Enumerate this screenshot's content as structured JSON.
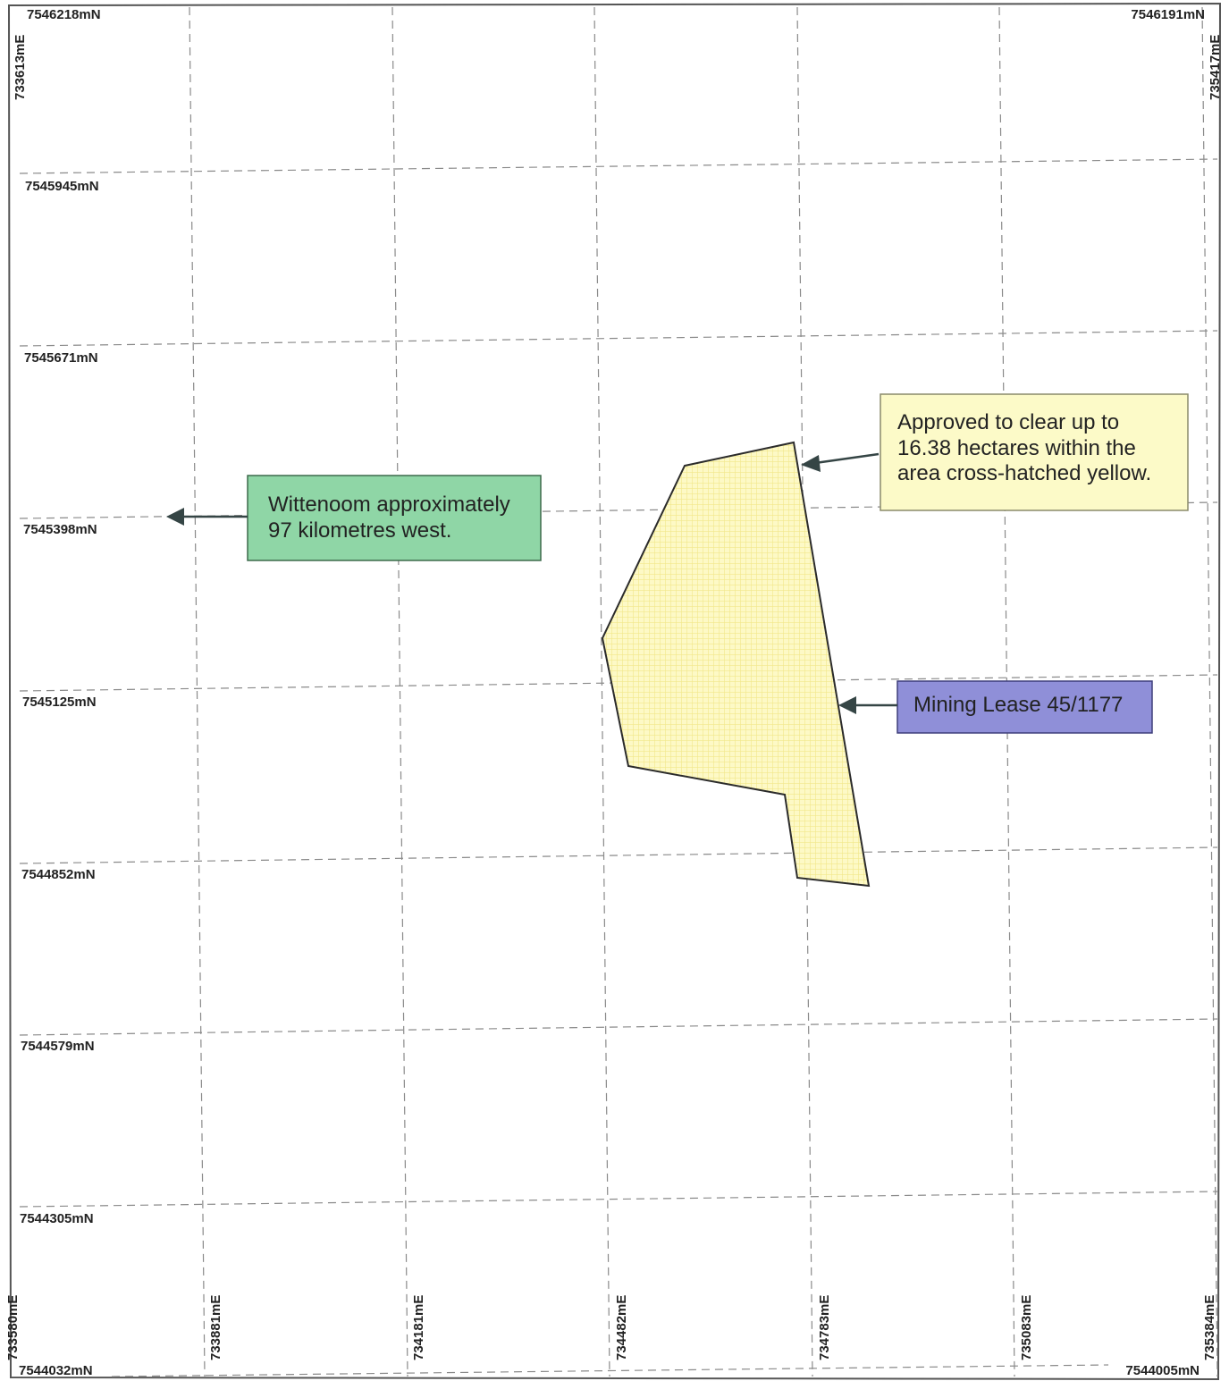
{
  "map": {
    "colors": {
      "frame": "#555555",
      "grid": "#8a8a8a",
      "lease_fill": "#fdf9c6",
      "lease_hatch": "#f1e88a",
      "lease_outline": "#2b2b2b",
      "arrow": "#354545"
    },
    "northing_labels_left": [
      "7546218mN",
      "7545945mN",
      "7545671mN",
      "7545398mN",
      "7545125mN",
      "7544852mN",
      "7544579mN",
      "7544305mN",
      "7544032mN"
    ],
    "northing_labels_right": [
      "7546191mN",
      "7544005mN"
    ],
    "easting_labels_top": [
      "733613mE",
      "735417mE"
    ],
    "easting_labels_bottom": [
      "733580mE",
      "733881mE",
      "734181mE",
      "734482mE",
      "734783mE",
      "735083mE",
      "735384mE"
    ],
    "callouts": {
      "clearing": {
        "lines": [
          "Approved to clear up to",
          "16.38 hectares within the",
          "area cross-hatched yellow."
        ],
        "fill": "#fcfac8",
        "border": "#8a8a6a"
      },
      "wittenoom": {
        "lines": [
          "Wittenoom approximately",
          "97 kilometres west."
        ],
        "fill": "#8fd6a6",
        "border": "#3d6a4c"
      },
      "lease": {
        "lines": [
          "Mining Lease 45/1177"
        ],
        "fill": "#8f8fd8",
        "border": "#3e3e7a"
      }
    }
  }
}
